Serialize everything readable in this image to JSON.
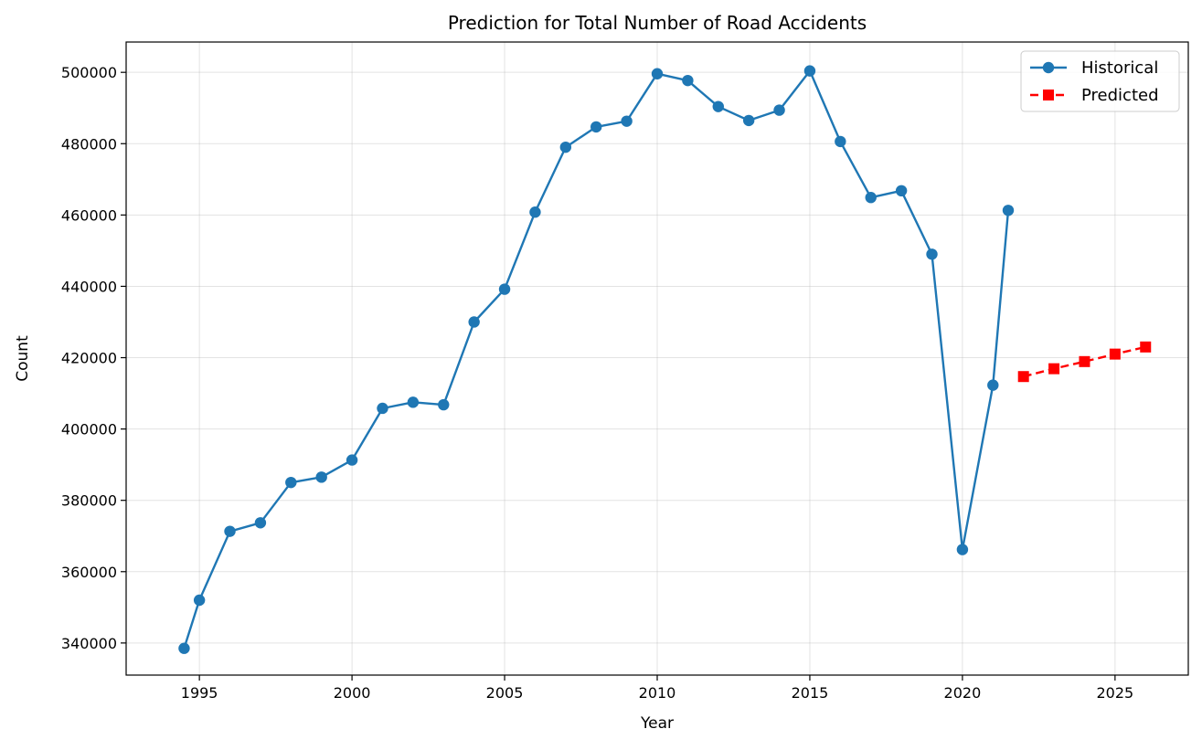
{
  "chart_data": {
    "type": "line",
    "title": "Prediction for Total Number of Road Accidents",
    "xlabel": "Year",
    "ylabel": "Count",
    "xlim": [
      1992.6,
      2027.4
    ],
    "ylim": [
      331000,
      508500
    ],
    "x_ticks": [
      1995,
      2000,
      2005,
      2010,
      2015,
      2020,
      2025
    ],
    "y_ticks": [
      340000,
      360000,
      380000,
      400000,
      420000,
      440000,
      460000,
      480000,
      500000
    ],
    "grid": true,
    "legend_position": "top-right",
    "series": [
      {
        "name": "Historical",
        "color": "#1f77b4",
        "line_style": "solid",
        "marker": "circle",
        "points": [
          {
            "x": 1994.5,
            "y": 338500
          },
          {
            "x": 1995,
            "y": 352000
          },
          {
            "x": 1996,
            "y": 371300
          },
          {
            "x": 1997,
            "y": 373700
          },
          {
            "x": 1998,
            "y": 385000
          },
          {
            "x": 1999,
            "y": 386500
          },
          {
            "x": 2000,
            "y": 391300
          },
          {
            "x": 2001,
            "y": 405800
          },
          {
            "x": 2002,
            "y": 407500
          },
          {
            "x": 2003,
            "y": 406800
          },
          {
            "x": 2004,
            "y": 430000
          },
          {
            "x": 2005,
            "y": 439200
          },
          {
            "x": 2006,
            "y": 460800
          },
          {
            "x": 2007,
            "y": 479000
          },
          {
            "x": 2008,
            "y": 484700
          },
          {
            "x": 2009,
            "y": 486300
          },
          {
            "x": 2010,
            "y": 499600
          },
          {
            "x": 2011,
            "y": 497700
          },
          {
            "x": 2012,
            "y": 490400
          },
          {
            "x": 2013,
            "y": 486500
          },
          {
            "x": 2014,
            "y": 489400
          },
          {
            "x": 2015,
            "y": 500400
          },
          {
            "x": 2016,
            "y": 480600
          },
          {
            "x": 2017,
            "y": 464900
          },
          {
            "x": 2018,
            "y": 466800
          },
          {
            "x": 2019,
            "y": 449000
          },
          {
            "x": 2020,
            "y": 366200
          },
          {
            "x": 2021,
            "y": 412300
          },
          {
            "x": 2021.5,
            "y": 461300
          }
        ]
      },
      {
        "name": "Predicted",
        "color": "#ff0000",
        "line_style": "dashed",
        "marker": "square",
        "points": [
          {
            "x": 2022,
            "y": 414700
          },
          {
            "x": 2023,
            "y": 416900
          },
          {
            "x": 2024,
            "y": 418900
          },
          {
            "x": 2025,
            "y": 421000
          },
          {
            "x": 2026,
            "y": 423000
          }
        ]
      }
    ]
  }
}
